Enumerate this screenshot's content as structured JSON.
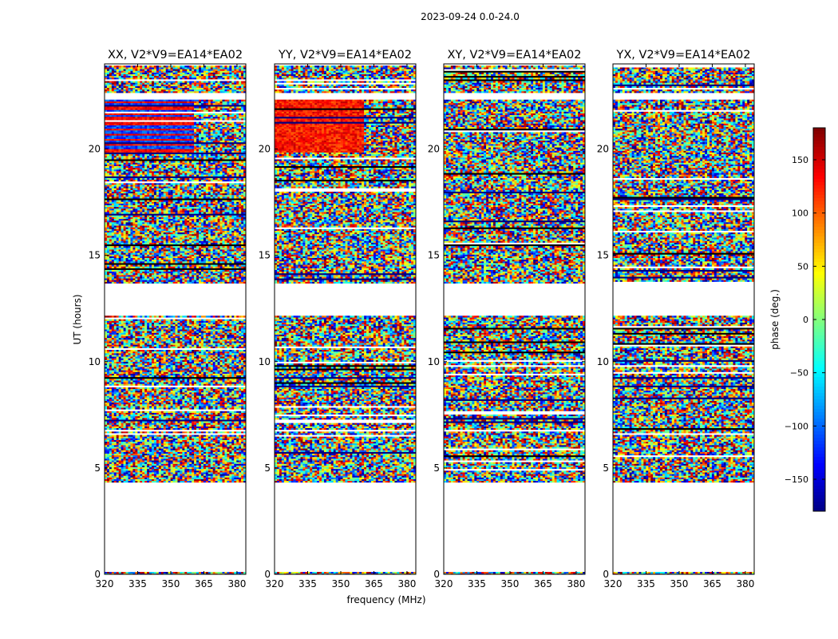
{
  "chart_data": {
    "type": "heatmap",
    "title": "2023-09-24 0.0-24.0",
    "xlabel": "frequency (MHz)",
    "ylabel": "UT (hours)",
    "xlim": [
      320,
      384
    ],
    "ylim": [
      0,
      24
    ],
    "xticks": [
      "320",
      "335",
      "350",
      "365",
      "380"
    ],
    "yticks": [
      "0",
      "5",
      "10",
      "15",
      "20"
    ],
    "colormap": "jet",
    "colorbar": {
      "label": "phase (deg.)",
      "range": [
        -180,
        180
      ],
      "ticks": [
        "150",
        "100",
        "50",
        "0",
        "−50",
        "−100",
        "−150"
      ]
    },
    "panels": [
      {
        "title": "XX, V2*V9=EA14*EA02",
        "blank_ut": [
          [
            0.1,
            4.3
          ],
          [
            12.2,
            13.7
          ],
          [
            22.3,
            22.6
          ]
        ],
        "regions": [
          {
            "ut": [
              19.8,
              22.3
            ],
            "freq": [
              320,
              361
            ],
            "phase": "blue/red structured"
          }
        ]
      },
      {
        "title": "YY, V2*V9=EA14*EA02",
        "blank_ut": [
          [
            0.1,
            4.3
          ],
          [
            12.2,
            13.7
          ],
          [
            22.3,
            22.6
          ]
        ],
        "regions": [
          {
            "ut": [
              19.8,
              22.3
            ],
            "freq": [
              320,
              361
            ],
            "phase": "red structured"
          }
        ]
      },
      {
        "title": "XY, V2*V9=EA14*EA02",
        "blank_ut": [
          [
            0.1,
            4.3
          ],
          [
            12.2,
            13.7
          ],
          [
            22.3,
            22.6
          ]
        ],
        "regions": []
      },
      {
        "title": "YX, V2*V9=EA14*EA02",
        "blank_ut": [
          [
            0.1,
            4.3
          ],
          [
            12.2,
            13.7
          ],
          [
            22.3,
            22.6
          ]
        ],
        "regions": []
      }
    ]
  }
}
